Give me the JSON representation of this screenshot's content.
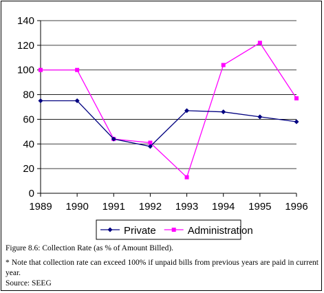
{
  "chart_data": {
    "type": "line",
    "categories": [
      "1989",
      "1990",
      "1991",
      "1992",
      "1993",
      "1994",
      "1995",
      "1996"
    ],
    "series": [
      {
        "name": "Private",
        "color": "#000080",
        "marker": "diamond",
        "values": [
          75,
          75,
          44,
          38,
          67,
          66,
          62,
          58
        ]
      },
      {
        "name": "Administration",
        "color": "#ff00ff",
        "marker": "square",
        "values": [
          100,
          100,
          44,
          41,
          13,
          104,
          122,
          77
        ]
      }
    ],
    "ylim": [
      0,
      140
    ],
    "yticks": [
      0,
      20,
      40,
      60,
      80,
      100,
      120,
      140
    ],
    "grid": true,
    "legend_position": "bottom",
    "title": "",
    "xlabel": "",
    "ylabel": ""
  },
  "caption": {
    "title": "Figure 8.6: Collection Rate (as % of Amount Billed).",
    "note": "* Note that collection rate can exceed 100% if unpaid bills from previous years are paid in current year.",
    "source": "Source: SEEG"
  }
}
